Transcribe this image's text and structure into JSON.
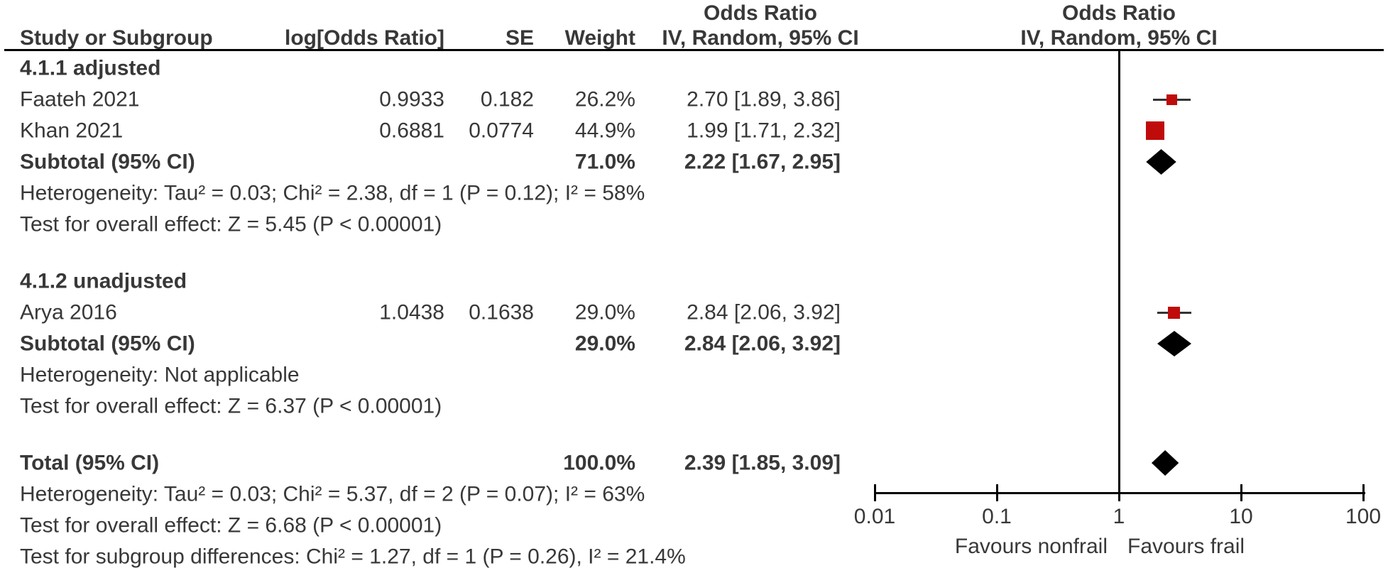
{
  "chart_data": {
    "type": "scatter",
    "variant": "forest-plot",
    "plot_header": {
      "title": "Odds Ratio",
      "subtitle": "IV, Random, 95% CI"
    },
    "text_ci_header": {
      "title": "Odds Ratio",
      "subtitle": "IV, Random, 95% CI"
    },
    "columns": [
      "Study or Subgroup",
      "log[Odds Ratio]",
      "SE",
      "Weight",
      "IV, Random, 95% CI"
    ],
    "x_axis": {
      "scale": "log10",
      "range": [
        0.01,
        100
      ],
      "ticks": [
        0.01,
        0.1,
        1,
        10,
        100
      ],
      "tick_labels": [
        "0.01",
        "0.1",
        "1",
        "10",
        "100"
      ],
      "null_value": 1,
      "left_label": "Favours nonfrail",
      "right_label": "Favours frail"
    },
    "rows": [
      {
        "kind": "subgroup",
        "label": "4.1.1 adjusted"
      },
      {
        "kind": "study",
        "label": "Faateh 2021",
        "log_or": "0.9933",
        "se": "0.182",
        "weight": "26.2%",
        "weight_pct": 26.2,
        "ci_text": "2.70 [1.89, 3.86]",
        "or": 2.7,
        "low": 1.89,
        "high": 3.86
      },
      {
        "kind": "study",
        "label": "Khan 2021",
        "log_or": "0.6881",
        "se": "0.0774",
        "weight": "44.9%",
        "weight_pct": 44.9,
        "ci_text": "1.99 [1.71, 2.32]",
        "or": 1.99,
        "low": 1.71,
        "high": 2.32
      },
      {
        "kind": "subtotal",
        "label": "Subtotal (95% CI)",
        "weight": "71.0%",
        "weight_pct": 71.0,
        "ci_text": "2.22 [1.67, 2.95]",
        "or": 2.22,
        "low": 1.67,
        "high": 2.95
      },
      {
        "kind": "note",
        "label": "Heterogeneity: Tau² = 0.03; Chi² = 2.38, df = 1 (P = 0.12); I² = 58%"
      },
      {
        "kind": "note",
        "label": "Test for overall effect: Z = 5.45 (P < 0.00001)"
      },
      {
        "kind": "spacer"
      },
      {
        "kind": "subgroup",
        "label": "4.1.2 unadjusted"
      },
      {
        "kind": "study",
        "label": "Arya 2016",
        "log_or": "1.0438",
        "se": "0.1638",
        "weight": "29.0%",
        "weight_pct": 29.0,
        "ci_text": "2.84 [2.06, 3.92]",
        "or": 2.84,
        "low": 2.06,
        "high": 3.92
      },
      {
        "kind": "subtotal",
        "label": "Subtotal (95% CI)",
        "weight": "29.0%",
        "weight_pct": 29.0,
        "ci_text": "2.84 [2.06, 3.92]",
        "or": 2.84,
        "low": 2.06,
        "high": 3.92
      },
      {
        "kind": "note",
        "label": "Heterogeneity: Not applicable"
      },
      {
        "kind": "note",
        "label": "Test for overall effect: Z = 6.37 (P < 0.00001)"
      },
      {
        "kind": "spacer"
      },
      {
        "kind": "total",
        "label": "Total (95% CI)",
        "weight": "100.0%",
        "weight_pct": 100.0,
        "ci_text": "2.39 [1.85, 3.09]",
        "or": 2.39,
        "low": 1.85,
        "high": 3.09
      },
      {
        "kind": "note",
        "label": "Heterogeneity: Tau² = 0.03; Chi² = 5.37, df = 2 (P = 0.07); I² = 63%"
      },
      {
        "kind": "note",
        "label": "Test for overall effect: Z = 6.68 (P < 0.00001)"
      },
      {
        "kind": "note",
        "label": "Test for subgroup differences: Chi² = 1.27, df = 1 (P = 0.26), I² = 21.4%"
      }
    ],
    "colors": {
      "study_marker": "#c00b0b",
      "summary_diamond": "#000000",
      "ci_line": "#333333",
      "axis": "#000000",
      "text": "#383838"
    }
  }
}
